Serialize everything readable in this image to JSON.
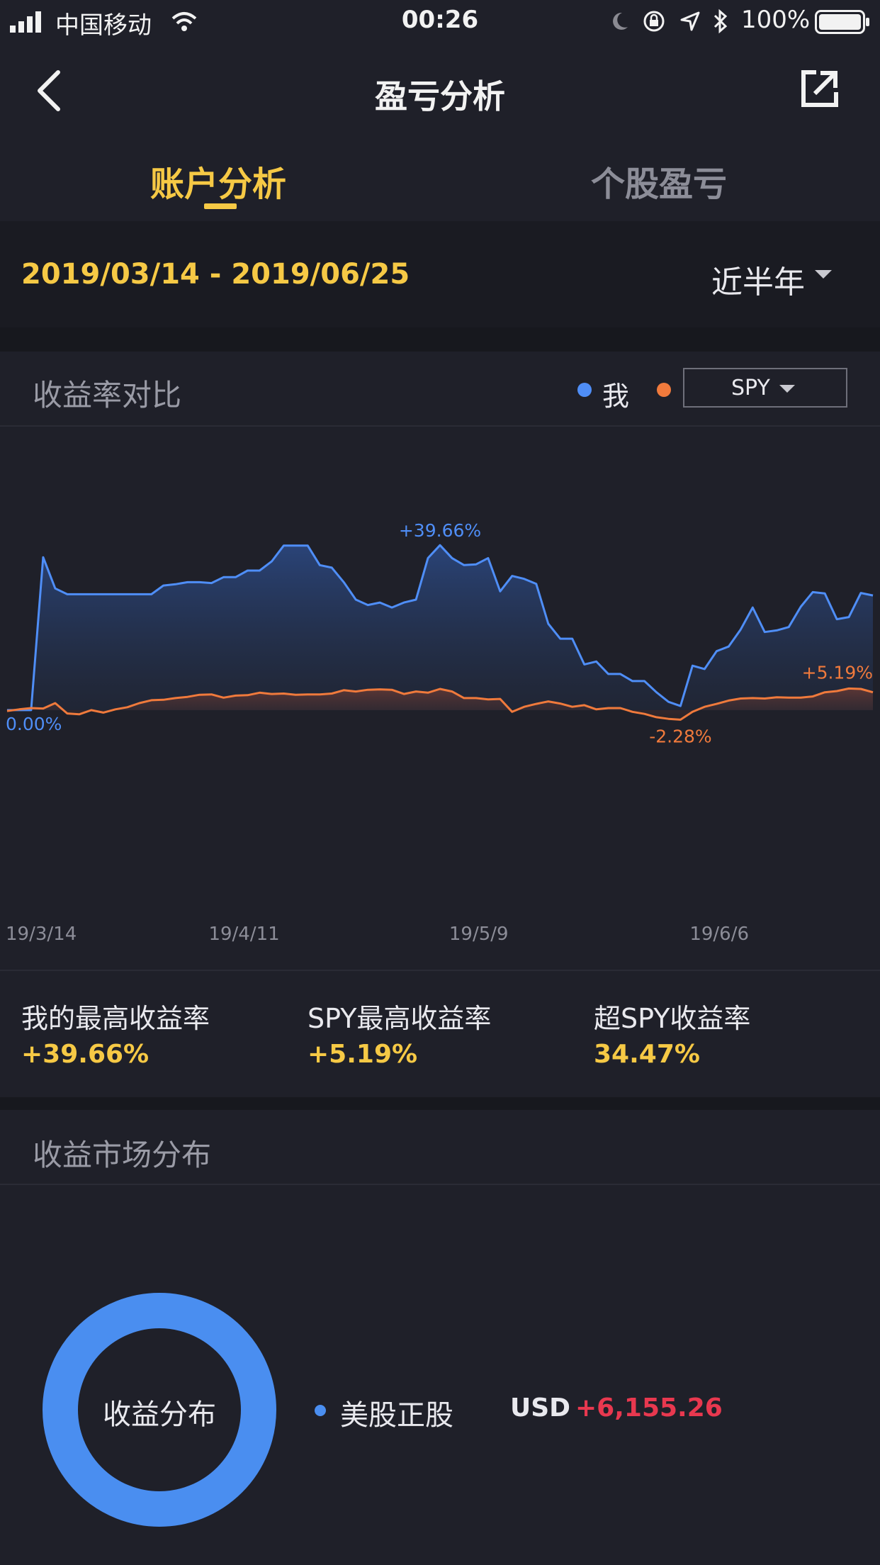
{
  "status_bar": {
    "carrier": "中国移动",
    "time": "00:26",
    "battery": "100%"
  },
  "header": {
    "title": "盈亏分析"
  },
  "tabs": [
    {
      "label": "账户分析",
      "active": true
    },
    {
      "label": "个股盈亏",
      "active": false
    }
  ],
  "filter": {
    "date_range": "2019/03/14 - 2019/06/25",
    "period": "近半年"
  },
  "comparison": {
    "title": "收益率对比",
    "legend_me": "我",
    "benchmark": "SPY"
  },
  "colors": {
    "accent": "#f6c945",
    "me_line": "#4f8ef7",
    "spy_line": "#f07a3c",
    "positive_amount": "#e8384f"
  },
  "chart_data": {
    "type": "line",
    "x": [
      0,
      1,
      2,
      3,
      4,
      5,
      6,
      7,
      8,
      9,
      10,
      11,
      12,
      13,
      14,
      15,
      16,
      17,
      18,
      19,
      20,
      21,
      22,
      23,
      24,
      25,
      26,
      27,
      28,
      29,
      30,
      31,
      32,
      33,
      34,
      35,
      36,
      37,
      38,
      39,
      40,
      41,
      42,
      43,
      44,
      45,
      46,
      47,
      48,
      49,
      50,
      51,
      52,
      53,
      54,
      55,
      56,
      57,
      58,
      59,
      60,
      61,
      62,
      63,
      64,
      65,
      66,
      67,
      68,
      69,
      70,
      71,
      72
    ],
    "x_ticks": [
      {
        "index": 3,
        "label": "19/3/14"
      },
      {
        "index": 20,
        "label": "19/4/11"
      },
      {
        "index": 40,
        "label": "19/5/9"
      },
      {
        "index": 60,
        "label": "19/6/6"
      }
    ],
    "series": [
      {
        "name": "我",
        "color": "#4f8ef7",
        "values": [
          0.0,
          0.0,
          0.0,
          36.8,
          29.3,
          27.9,
          27.9,
          27.9,
          27.9,
          27.9,
          27.9,
          27.9,
          27.9,
          30.0,
          30.3,
          30.8,
          30.8,
          30.6,
          32.0,
          32.0,
          33.6,
          33.6,
          35.8,
          39.6,
          39.6,
          39.6,
          34.9,
          34.3,
          30.8,
          26.6,
          25.3,
          25.9,
          24.7,
          25.9,
          26.6,
          36.6,
          39.7,
          36.6,
          34.9,
          35.1,
          36.6,
          28.6,
          32.3,
          31.6,
          30.4,
          20.8,
          17.2,
          17.2,
          11.0,
          11.7,
          8.7,
          8.7,
          7.0,
          7.0,
          4.3,
          2.0,
          1.0,
          10.7,
          9.9,
          14.2,
          15.3,
          19.4,
          24.7,
          18.8,
          19.2,
          20.0,
          24.9,
          28.4,
          28.1,
          21.9,
          22.4,
          28.2,
          27.6
        ],
        "labels": [
          {
            "index": 0,
            "text": "0.00%"
          },
          {
            "index": 36,
            "text": "+39.66%"
          }
        ]
      },
      {
        "name": "SPY",
        "color": "#f07a3c",
        "values": [
          -0.2,
          0.2,
          0.5,
          0.4,
          1.7,
          -0.8,
          -1.0,
          0.0,
          -0.6,
          0.2,
          0.7,
          1.7,
          2.4,
          2.5,
          2.9,
          3.2,
          3.7,
          3.8,
          3.0,
          3.5,
          3.6,
          4.2,
          3.9,
          4.0,
          3.7,
          3.8,
          3.8,
          4.0,
          4.8,
          4.5,
          4.9,
          5.0,
          4.9,
          3.9,
          4.5,
          4.2,
          5.1,
          4.5,
          2.9,
          2.9,
          2.6,
          2.7,
          -0.4,
          0.8,
          1.5,
          2.1,
          1.6,
          0.8,
          1.2,
          0.2,
          0.5,
          0.5,
          -0.4,
          -0.9,
          -1.7,
          -2.1,
          -2.3,
          -0.4,
          0.8,
          1.5,
          2.3,
          2.8,
          2.9,
          2.8,
          3.1,
          3.0,
          3.0,
          3.3,
          4.3,
          4.6,
          5.2,
          5.1,
          4.3
        ],
        "labels": [
          {
            "index": 56,
            "text": "-2.28%"
          },
          {
            "index": 70,
            "text": "+5.19%"
          }
        ]
      }
    ],
    "ylim": [
      -14,
      44
    ]
  },
  "stats": [
    {
      "label": "我的最高收益率",
      "value": "+39.66%"
    },
    {
      "label": "SPY最高收益率",
      "value": "+5.19%"
    },
    {
      "label": "超SPY收益率",
      "value": "34.47%"
    }
  ],
  "distribution": {
    "title": "收益市场分布",
    "donut_label": "收益分布",
    "market": "美股正股",
    "currency": "USD",
    "amount": "+6,155.26"
  },
  "icons": {
    "back": "back-chevron-icon",
    "share": "share-external-icon"
  }
}
